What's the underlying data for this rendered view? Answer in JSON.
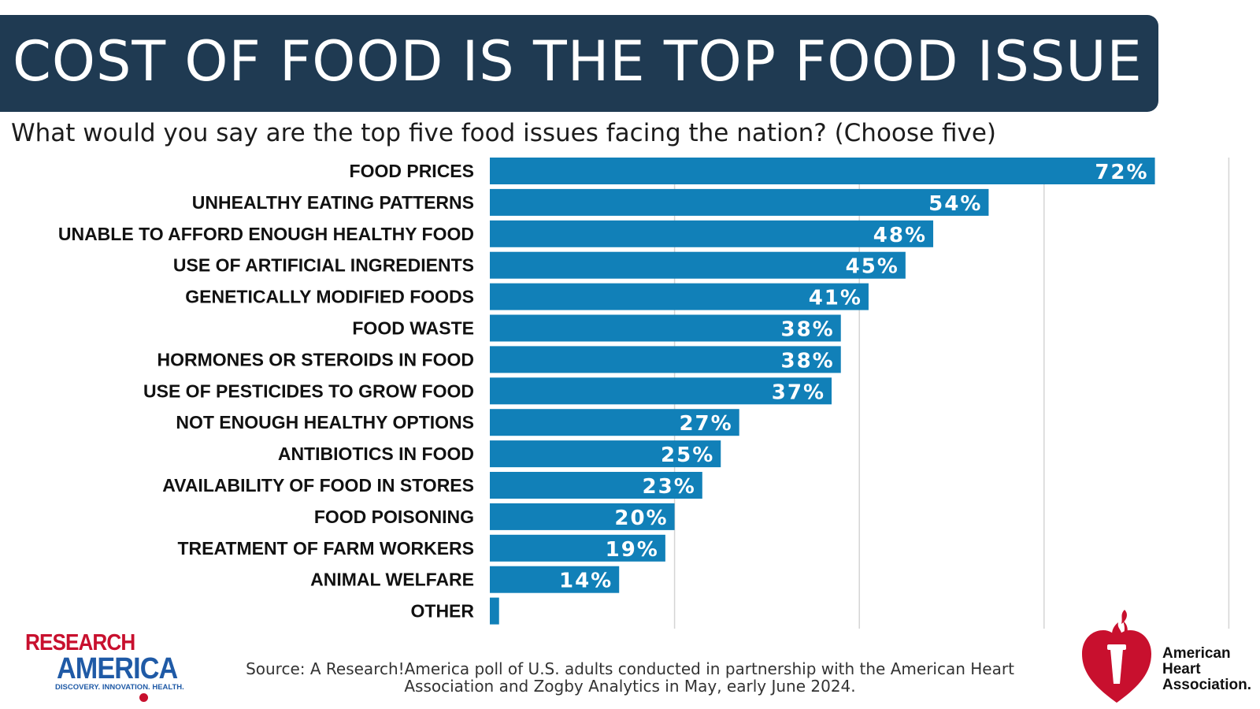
{
  "title": "COST OF FOOD IS THE TOP FOOD ISSUE",
  "subtitle": "What would you say are the top five food issues facing the nation? (Choose five)",
  "colors": {
    "title_bg": "#1f3a52",
    "bar": "#1180b8",
    "grid": "#d4d4d4",
    "ra_red": "#c8102e",
    "ra_blue": "#1f5aa6",
    "aha_red": "#c8102e"
  },
  "chart_data": {
    "type": "bar",
    "orientation": "horizontal",
    "categories": [
      "FOOD PRICES",
      "UNHEALTHY EATING PATTERNS",
      "UNABLE TO AFFORD ENOUGH HEALTHY FOOD",
      "USE OF ARTIFICIAL INGREDIENTS",
      "GENETICALLY MODIFIED FOODS",
      "FOOD WASTE",
      "HORMONES OR STEROIDS IN FOOD",
      "USE OF PESTICIDES TO GROW FOOD",
      "NOT ENOUGH HEALTHY OPTIONS",
      "ANTIBIOTICS IN FOOD",
      "AVAILABILITY OF FOOD IN STORES",
      "FOOD POISONING",
      "TREATMENT OF FARM WORKERS",
      "ANIMAL WELFARE",
      "OTHER"
    ],
    "values": [
      72,
      54,
      48,
      45,
      41,
      38,
      38,
      37,
      27,
      25,
      23,
      20,
      19,
      14,
      1
    ],
    "value_labels": [
      "72%",
      "54%",
      "48%",
      "45%",
      "41%",
      "38%",
      "38%",
      "37%",
      "27%",
      "25%",
      "23%",
      "20%",
      "19%",
      "14%",
      ""
    ],
    "xlim": [
      0,
      80
    ],
    "x_gridlines": [
      20,
      40,
      60,
      80
    ],
    "grid": true,
    "legend": "none"
  },
  "source": "Source:  A Research!America poll of U.S. adults conducted in partnership with the American Heart Association and Zogby Analytics in May, early June 2024.",
  "logos": {
    "research_america": {
      "line1": "RESEARCH",
      "line2": "AMERICA",
      "tagline": "DISCOVERY. INNOVATION. HEALTH."
    },
    "american_heart_association": {
      "line1": "American",
      "line2": "Heart",
      "line3": "Association."
    }
  }
}
